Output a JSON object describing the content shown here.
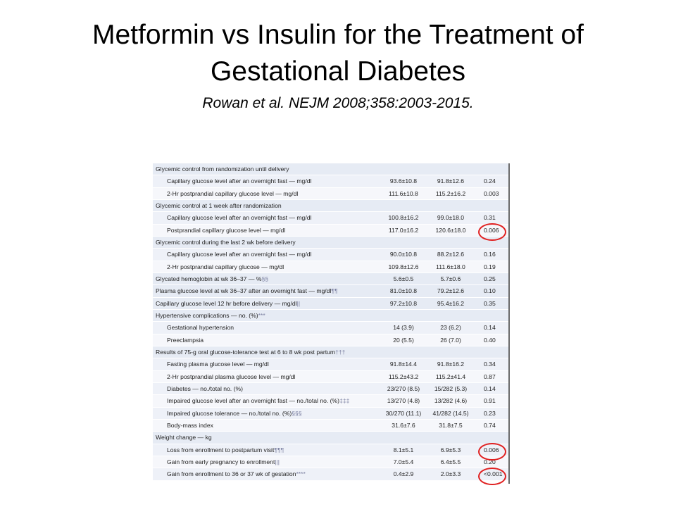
{
  "slide": {
    "title_line1": "Metformin vs Insulin for the Treatment of",
    "title_line2": "Gestational Diabetes",
    "citation": "Rowan et al.  NEJM 2008;358:2003-2015."
  },
  "table": {
    "rows": [
      {
        "type": "section",
        "label": "Glycemic control from randomization until delivery",
        "fn": "",
        "metformin": "",
        "insulin": "",
        "p": ""
      },
      {
        "type": "item",
        "label": "Capillary glucose level after an overnight fast — mg/dl",
        "fn": "",
        "metformin": "93.6±10.8",
        "insulin": "91.8±12.6",
        "p": "0.24"
      },
      {
        "type": "item",
        "label": "2-Hr postprandial capillary glucose level — mg/dl",
        "fn": "",
        "metformin": "111.6±10.8",
        "insulin": "115.2±16.2",
        "p": "0.003"
      },
      {
        "type": "section",
        "label": "Glycemic control at 1 week after randomization",
        "fn": "",
        "metformin": "",
        "insulin": "",
        "p": ""
      },
      {
        "type": "item",
        "label": "Capillary glucose level after an overnight fast — mg/dl",
        "fn": "",
        "metformin": "100.8±16.2",
        "insulin": "99.0±18.0",
        "p": "0.31"
      },
      {
        "type": "item",
        "label": "Postprandial capillary glucose level — mg/dl",
        "fn": "",
        "metformin": "117.0±16.2",
        "insulin": "120.6±18.0",
        "p": "0.006"
      },
      {
        "type": "section",
        "label": "Glycemic control during the last 2 wk before delivery",
        "fn": "",
        "metformin": "",
        "insulin": "",
        "p": ""
      },
      {
        "type": "item",
        "label": "Capillary glucose level after an overnight fast — mg/dl",
        "fn": "",
        "metformin": "90.0±10.8",
        "insulin": "88.2±12.6",
        "p": "0.16"
      },
      {
        "type": "item",
        "label": "2-Hr postprandial capillary glucose — mg/dl",
        "fn": "",
        "metformin": "109.8±12.6",
        "insulin": "111.6±18.0",
        "p": "0.19"
      },
      {
        "type": "section",
        "label": "Glycated hemoglobin at wk 36–37 — %",
        "fn": "§§",
        "metformin": "5.6±0.5",
        "insulin": "5.7±0.6",
        "p": "0.25"
      },
      {
        "type": "section",
        "label": "Plasma glucose level at wk 36–37 after an overnight fast — mg/dl",
        "fn": "¶¶",
        "metformin": "81.0±10.8",
        "insulin": "79.2±12.6",
        "p": "0.10"
      },
      {
        "type": "section",
        "label": "Capillary glucose level 12 hr before delivery — mg/dl",
        "fn": "||",
        "metformin": "97.2±10.8",
        "insulin": "95.4±16.2",
        "p": "0.35"
      },
      {
        "type": "section",
        "label": "Hypertensive complications — no. (%)",
        "fn": "***",
        "metformin": "",
        "insulin": "",
        "p": ""
      },
      {
        "type": "item",
        "label": "Gestational hypertension",
        "fn": "",
        "metformin": "14 (3.9)",
        "insulin": "23 (6.2)",
        "p": "0.14"
      },
      {
        "type": "item",
        "label": "Preeclampsia",
        "fn": "",
        "metformin": "20 (5.5)",
        "insulin": "26 (7.0)",
        "p": "0.40"
      },
      {
        "type": "section",
        "label": "Results of 75-g oral glucose-tolerance test at 6 to 8 wk post partum",
        "fn": "†††",
        "metformin": "",
        "insulin": "",
        "p": ""
      },
      {
        "type": "item",
        "label": "Fasting plasma glucose level — mg/dl",
        "fn": "",
        "metformin": "91.8±14.4",
        "insulin": "91.8±16.2",
        "p": "0.34"
      },
      {
        "type": "item",
        "label": "2-Hr postprandial plasma glucose level — mg/dl",
        "fn": "",
        "metformin": "115.2±43.2",
        "insulin": "115.2±41.4",
        "p": "0.87"
      },
      {
        "type": "item",
        "label": "Diabetes — no./total no. (%)",
        "fn": "",
        "metformin": "23/270 (8.5)",
        "insulin": "15/282 (5.3)",
        "p": "0.14"
      },
      {
        "type": "item",
        "label": "Impaired glucose level after an overnight fast — no./total no. (%)",
        "fn": "‡‡‡",
        "metformin": "13/270 (4.8)",
        "insulin": "13/282 (4.6)",
        "p": "0.91"
      },
      {
        "type": "item",
        "label": "Impaired glucose tolerance — no./total no. (%)",
        "fn": "§§§",
        "metformin": "30/270 (11.1)",
        "insulin": "41/282 (14.5)",
        "p": "0.23"
      },
      {
        "type": "item",
        "label": "Body-mass index",
        "fn": "",
        "metformin": "31.6±7.6",
        "insulin": "31.8±7.5",
        "p": "0.74"
      },
      {
        "type": "section",
        "label": "Weight change — kg",
        "fn": "",
        "metformin": "",
        "insulin": "",
        "p": ""
      },
      {
        "type": "item",
        "label": "Loss from enrollment to postpartum visit",
        "fn": "¶¶¶",
        "metformin": "8.1±5.1",
        "insulin": "6.9±5.3",
        "p": "0.006"
      },
      {
        "type": "item",
        "label": "Gain from early pregnancy to enrollment",
        "fn": "|||",
        "metformin": "7.0±5.4",
        "insulin": "6.4±5.5",
        "p": "0.20"
      },
      {
        "type": "item",
        "label": "Gain from enrollment to 36 or 37 wk of gestation",
        "fn": "****",
        "metformin": "0.4±2.9",
        "insulin": "2.0±3.3",
        "p": "<0.001"
      }
    ]
  },
  "annotations": {
    "circle_color": "#e02020",
    "circled_rows": [
      5,
      23,
      25
    ]
  }
}
